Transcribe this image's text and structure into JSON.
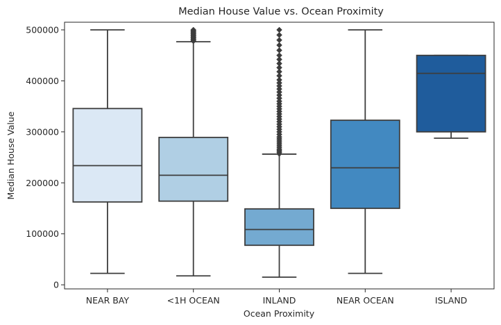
{
  "chart_data": {
    "type": "box",
    "title": "Median House Value vs. Ocean Proximity",
    "xlabel": "Ocean Proximity",
    "ylabel": "Median House Value",
    "ylim": [
      -8000,
      515000
    ],
    "yticks": [
      0,
      100000,
      200000,
      300000,
      400000,
      500000
    ],
    "grid": false,
    "categories": [
      "NEAR BAY",
      "<1H OCEAN",
      "INLAND",
      "NEAR OCEAN",
      "ISLAND"
    ],
    "boxes": [
      {
        "category": "NEAR BAY",
        "color": "#dbe8f5",
        "q1": 162500,
        "median": 233800,
        "q3": 345700,
        "whisker_low": 22500,
        "whisker_high": 500001,
        "outliers": []
      },
      {
        "category": "<1H OCEAN",
        "color": "#b0cfe4",
        "q1": 164100,
        "median": 214850,
        "q3": 289100,
        "whisker_low": 17500,
        "whisker_high": 476700,
        "outliers": [
          478000,
          480000,
          482000,
          484000,
          486000,
          488000,
          490000,
          492000,
          494000,
          496000,
          498000,
          500001
        ]
      },
      {
        "category": "INLAND",
        "color": "#74aad1",
        "q1": 77500,
        "median": 108500,
        "q3": 148950,
        "whisker_low": 14999,
        "whisker_high": 256300,
        "outliers": [
          257000,
          260000,
          263000,
          266000,
          270000,
          274000,
          278000,
          282000,
          286000,
          290000,
          295000,
          300000,
          305000,
          310000,
          315000,
          320000,
          325000,
          330000,
          335000,
          340000,
          345000,
          350000,
          355000,
          360000,
          366000,
          372000,
          378000,
          384000,
          390000,
          396000,
          402000,
          410000,
          418000,
          426000,
          434000,
          442000,
          450000,
          460000,
          470000,
          480000,
          490000,
          500001
        ]
      },
      {
        "category": "NEAR OCEAN",
        "color": "#4289c1",
        "q1": 150000,
        "median": 229450,
        "q3": 322750,
        "whisker_low": 22500,
        "whisker_high": 500001,
        "outliers": []
      },
      {
        "category": "ISLAND",
        "color": "#1f5c9c",
        "q1": 300000,
        "median": 414700,
        "q3": 450000,
        "whisker_low": 287500,
        "whisker_high": 450000,
        "outliers": []
      }
    ]
  }
}
